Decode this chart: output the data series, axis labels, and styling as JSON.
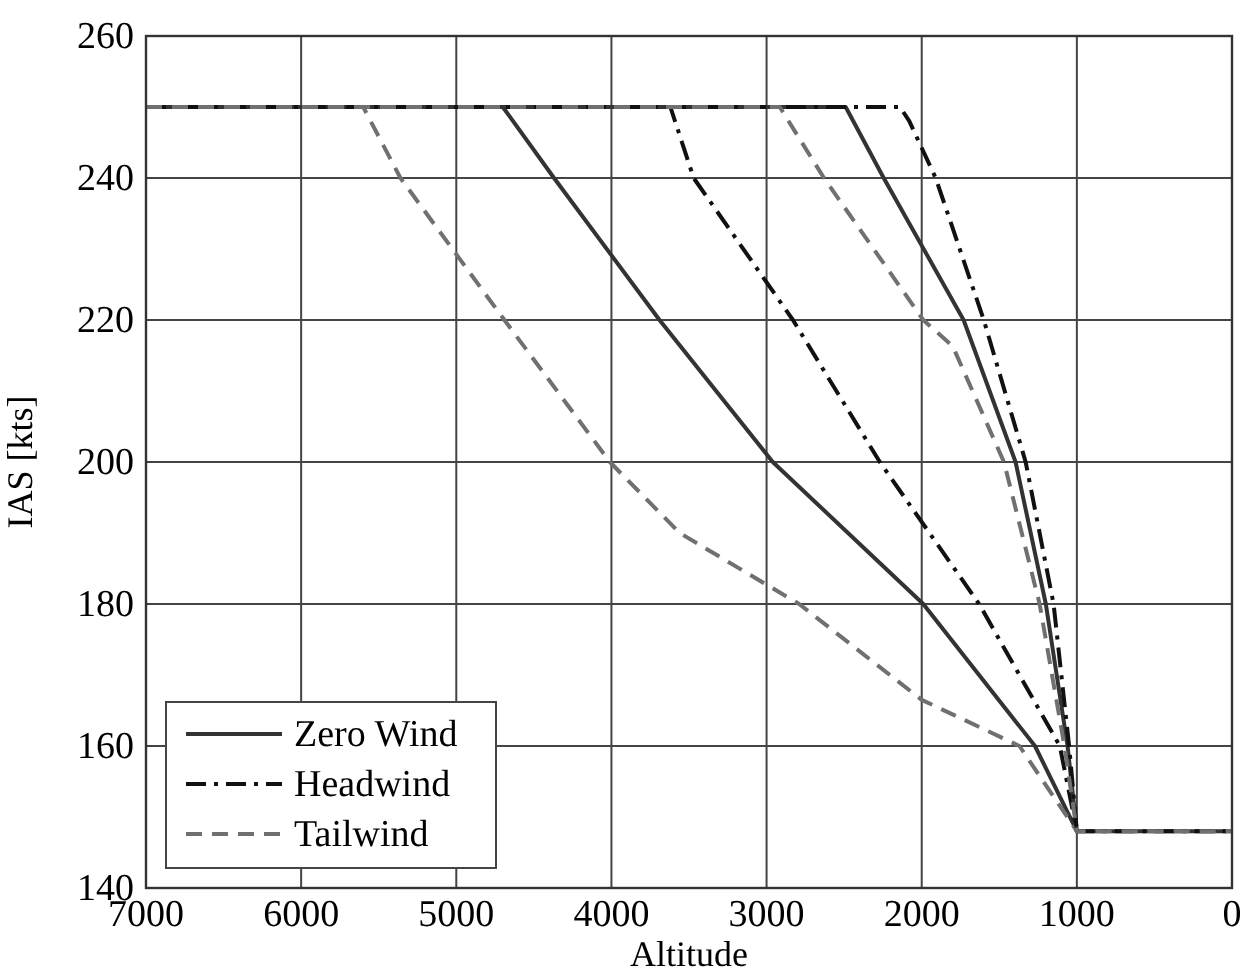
{
  "chart_data": {
    "type": "line",
    "xlabel": "Altitude",
    "ylabel": "IAS [kts]",
    "xlim": [
      7000,
      0
    ],
    "ylim": [
      140,
      260
    ],
    "xticks": [
      7000,
      6000,
      5000,
      4000,
      3000,
      2000,
      1000,
      0
    ],
    "yticks": [
      140,
      160,
      180,
      200,
      220,
      240,
      260
    ],
    "grid": true,
    "legend": "bottom left",
    "series": [
      {
        "name": "Zero Wind",
        "color": "#333333",
        "line_style": "solid",
        "x": [
          7000,
          4700,
          4370,
          3690,
          2960,
          1990,
          1270,
          1000,
          0
        ],
        "values": [
          250,
          250,
          240,
          220,
          200,
          180,
          160,
          148,
          148
        ]
      },
      {
        "name": "Headwind",
        "color": "#111111",
        "line_style": "dashdot",
        "x": [
          7000,
          3620,
          3470,
          2830,
          2270,
          1630,
          1110,
          1000,
          0
        ],
        "values": [
          250,
          250,
          240,
          220,
          200,
          180,
          160,
          148,
          148
        ]
      },
      {
        "name": "Tailwind",
        "color": "#707070",
        "line_style": "dashed",
        "x": [
          7000,
          5600,
          5360,
          4690,
          4010,
          3560,
          2790,
          2000,
          1370,
          1000,
          0
        ],
        "values": [
          250,
          250,
          240,
          220,
          200,
          190,
          180,
          166.5,
          160,
          148,
          148
        ]
      },
      {
        "color": "#333333",
        "line_style": "solid",
        "x": [
          7000,
          2490,
          2245,
          1730,
          1395,
          1200,
          1060,
          1000
        ],
        "values": [
          250,
          250,
          240,
          220,
          200,
          180,
          160,
          148
        ]
      },
      {
        "color": "#111111",
        "line_style": "dashdot",
        "x": [
          7000,
          2140,
          2080,
          1910,
          1600,
          1330,
          1150,
          1050,
          1000
        ],
        "values": [
          250,
          250,
          248,
          240,
          220,
          200,
          180,
          160,
          148
        ]
      },
      {
        "color": "#707070",
        "line_style": "dashed",
        "x": [
          7000,
          2915,
          2630,
          1990,
          1800,
          1470,
          1240,
          1080,
          1000
        ],
        "values": [
          250,
          250,
          240,
          220,
          216.3,
          200,
          180,
          160,
          148
        ]
      }
    ]
  }
}
